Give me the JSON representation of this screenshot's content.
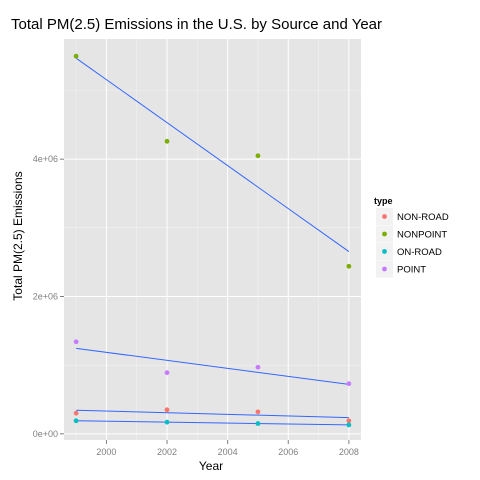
{
  "chart_data": {
    "type": "scatter",
    "title": "Total PM(2.5) Emissions in the U.S. by Source and Year",
    "xlabel": "Year",
    "ylabel": "Total PM(2.5) Emissions",
    "xlim": [
      1998.6,
      2008.4
    ],
    "ylim": [
      -90000,
      5750000
    ],
    "x_ticks": [
      {
        "value": 2000,
        "label": "2000"
      },
      {
        "value": 2002,
        "label": "2002"
      },
      {
        "value": 2004,
        "label": "2004"
      },
      {
        "value": 2006,
        "label": "2006"
      },
      {
        "value": 2008,
        "label": "2008"
      }
    ],
    "y_ticks": [
      {
        "value": 0,
        "label": "0e+00"
      },
      {
        "value": 2000000,
        "label": "2e+06"
      },
      {
        "value": 4000000,
        "label": "4e+06"
      }
    ],
    "grid": true,
    "legend": {
      "title": "type",
      "position": "right"
    },
    "smooth": {
      "method": "linear",
      "color": "#3366ff"
    },
    "series": [
      {
        "name": "NON-ROAD",
        "color": "#f8766d",
        "points": [
          [
            1999,
            300000
          ],
          [
            2002,
            350000
          ],
          [
            2005,
            320000
          ],
          [
            2008,
            190000
          ]
        ]
      },
      {
        "name": "NONPOINT",
        "color": "#7cae00",
        "points": [
          [
            1999,
            5500000
          ],
          [
            2002,
            4260000
          ],
          [
            2005,
            4050000
          ],
          [
            2008,
            2440000
          ]
        ]
      },
      {
        "name": "ON-ROAD",
        "color": "#00bfc4",
        "points": [
          [
            1999,
            190000
          ],
          [
            2002,
            170000
          ],
          [
            2005,
            150000
          ],
          [
            2008,
            130000
          ]
        ]
      },
      {
        "name": "POINT",
        "color": "#c77cff",
        "points": [
          [
            1999,
            1340000
          ],
          [
            2002,
            890000
          ],
          [
            2005,
            970000
          ],
          [
            2008,
            730000
          ]
        ]
      }
    ]
  }
}
